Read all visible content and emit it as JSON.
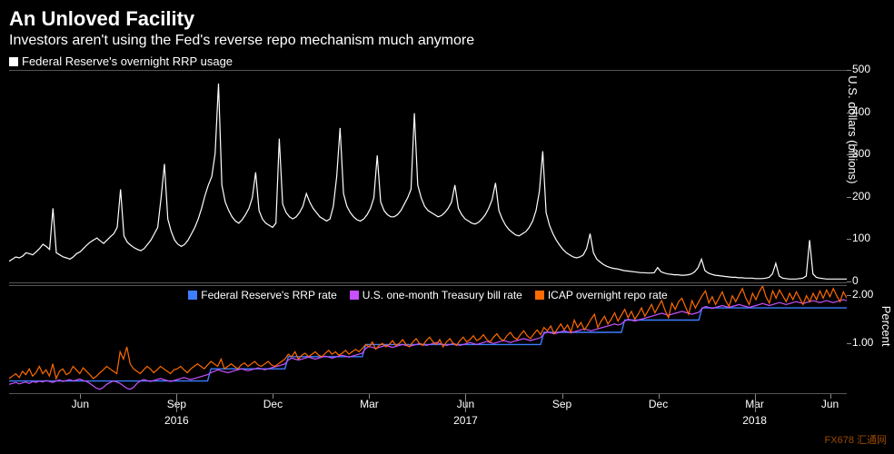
{
  "title": "An Unloved Facility",
  "subtitle": "Investors aren't using the Fed's reverse repo mechanism much anymore",
  "top_chart": {
    "type": "line",
    "legend_label": "Federal Reserve's overnight RRP usage",
    "legend_color": "#ffffff",
    "ylabel": "U.S. dollars (billions)",
    "ylim": [
      0,
      500
    ],
    "yticks": [
      0,
      100,
      200,
      300,
      400,
      500
    ],
    "line_color": "#ffffff",
    "line_width": 1.2,
    "background_color": "#000000",
    "data": [
      50,
      55,
      60,
      58,
      62,
      70,
      68,
      65,
      72,
      80,
      90,
      85,
      78,
      175,
      70,
      65,
      60,
      58,
      55,
      60,
      68,
      72,
      80,
      88,
      95,
      100,
      105,
      98,
      92,
      100,
      108,
      115,
      130,
      220,
      110,
      95,
      88,
      82,
      78,
      75,
      80,
      90,
      100,
      115,
      130,
      200,
      280,
      150,
      120,
      100,
      90,
      85,
      90,
      100,
      115,
      130,
      150,
      175,
      205,
      230,
      250,
      305,
      470,
      230,
      190,
      170,
      155,
      145,
      140,
      148,
      160,
      175,
      200,
      260,
      170,
      150,
      140,
      135,
      130,
      140,
      340,
      185,
      165,
      155,
      150,
      155,
      165,
      180,
      210,
      190,
      175,
      165,
      155,
      150,
      145,
      150,
      180,
      250,
      365,
      210,
      180,
      165,
      155,
      148,
      145,
      150,
      160,
      175,
      200,
      300,
      190,
      170,
      160,
      155,
      155,
      160,
      170,
      185,
      200,
      220,
      400,
      230,
      200,
      180,
      170,
      165,
      160,
      155,
      158,
      165,
      175,
      190,
      230,
      175,
      160,
      150,
      145,
      140,
      138,
      142,
      150,
      160,
      175,
      195,
      235,
      170,
      150,
      135,
      125,
      118,
      112,
      110,
      115,
      120,
      130,
      145,
      170,
      215,
      310,
      165,
      135,
      115,
      100,
      88,
      78,
      70,
      65,
      60,
      58,
      60,
      65,
      80,
      115,
      70,
      55,
      48,
      42,
      38,
      35,
      33,
      32,
      30,
      28,
      27,
      26,
      25,
      24,
      23,
      23,
      22,
      22,
      23,
      35,
      25,
      22,
      20,
      19,
      18,
      18,
      17,
      17,
      18,
      20,
      25,
      35,
      55,
      28,
      22,
      19,
      17,
      16,
      15,
      14,
      13,
      12,
      12,
      11,
      11,
      10,
      10,
      10,
      9,
      9,
      9,
      10,
      12,
      20,
      45,
      15,
      10,
      9,
      8,
      8,
      8,
      9,
      10,
      15,
      100,
      20,
      12,
      10,
      9,
      8,
      8,
      8,
      8,
      8,
      8,
      8
    ]
  },
  "bottom_chart": {
    "type": "line",
    "ylabel": "Percent",
    "ylim": [
      0,
      2.2
    ],
    "yticks": [
      1.0,
      2.0
    ],
    "ytick_labels": [
      "1.00",
      "2.00"
    ],
    "background_color": "#000000",
    "series": [
      {
        "label": "Federal Reserve's RRP rate",
        "color": "#3d7dff",
        "line_width": 1.4,
        "data": [
          0.25,
          0.25,
          0.25,
          0.25,
          0.25,
          0.25,
          0.25,
          0.25,
          0.25,
          0.25,
          0.25,
          0.25,
          0.25,
          0.25,
          0.25,
          0.25,
          0.25,
          0.25,
          0.25,
          0.25,
          0.25,
          0.25,
          0.25,
          0.25,
          0.25,
          0.25,
          0.25,
          0.25,
          0.25,
          0.25,
          0.25,
          0.25,
          0.25,
          0.25,
          0.25,
          0.25,
          0.25,
          0.25,
          0.25,
          0.25,
          0.25,
          0.25,
          0.25,
          0.25,
          0.25,
          0.25,
          0.25,
          0.25,
          0.25,
          0.25,
          0.25,
          0.25,
          0.25,
          0.25,
          0.25,
          0.25,
          0.25,
          0.25,
          0.25,
          0.25,
          0.5,
          0.5,
          0.5,
          0.5,
          0.5,
          0.5,
          0.5,
          0.5,
          0.5,
          0.5,
          0.5,
          0.5,
          0.5,
          0.5,
          0.5,
          0.5,
          0.5,
          0.5,
          0.5,
          0.5,
          0.5,
          0.5,
          0.5,
          0.75,
          0.75,
          0.75,
          0.75,
          0.75,
          0.75,
          0.75,
          0.75,
          0.75,
          0.75,
          0.75,
          0.75,
          0.75,
          0.75,
          0.75,
          0.75,
          0.75,
          0.75,
          0.75,
          0.75,
          0.75,
          0.75,
          0.75,
          1.0,
          1.0,
          1.0,
          1.0,
          1.0,
          1.0,
          1.0,
          1.0,
          1.0,
          1.0,
          1.0,
          1.0,
          1.0,
          1.0,
          1.0,
          1.0,
          1.0,
          1.0,
          1.0,
          1.0,
          1.0,
          1.0,
          1.0,
          1.0,
          1.0,
          1.0,
          1.0,
          1.0,
          1.0,
          1.0,
          1.0,
          1.0,
          1.0,
          1.0,
          1.0,
          1.0,
          1.0,
          1.0,
          1.0,
          1.0,
          1.0,
          1.0,
          1.0,
          1.0,
          1.0,
          1.0,
          1.0,
          1.0,
          1.0,
          1.0,
          1.0,
          1.0,
          1.0,
          1.25,
          1.25,
          1.25,
          1.25,
          1.25,
          1.25,
          1.25,
          1.25,
          1.25,
          1.25,
          1.25,
          1.25,
          1.25,
          1.25,
          1.25,
          1.25,
          1.25,
          1.25,
          1.25,
          1.25,
          1.25,
          1.25,
          1.25,
          1.25,
          1.5,
          1.5,
          1.5,
          1.5,
          1.5,
          1.5,
          1.5,
          1.5,
          1.5,
          1.5,
          1.5,
          1.5,
          1.5,
          1.5,
          1.5,
          1.5,
          1.5,
          1.5,
          1.5,
          1.5,
          1.5,
          1.5,
          1.5,
          1.75,
          1.75,
          1.75,
          1.75,
          1.75,
          1.75,
          1.75,
          1.75,
          1.75,
          1.75,
          1.75,
          1.75,
          1.75,
          1.75,
          1.75,
          1.75,
          1.75,
          1.75,
          1.75,
          1.75,
          1.75,
          1.75,
          1.75,
          1.75,
          1.75,
          1.75,
          1.75,
          1.75,
          1.75,
          1.75,
          1.75,
          1.75,
          1.75,
          1.75,
          1.75,
          1.75,
          1.75,
          1.75,
          1.75,
          1.75,
          1.75,
          1.75,
          1.75,
          1.75
        ]
      },
      {
        "label": "U.S. one-month Treasury bill rate",
        "color": "#c850ff",
        "line_width": 1.2,
        "data": [
          0.18,
          0.2,
          0.22,
          0.19,
          0.21,
          0.23,
          0.2,
          0.24,
          0.22,
          0.25,
          0.23,
          0.26,
          0.24,
          0.22,
          0.25,
          0.27,
          0.24,
          0.26,
          0.28,
          0.25,
          0.27,
          0.29,
          0.26,
          0.24,
          0.2,
          0.15,
          0.1,
          0.08,
          0.12,
          0.18,
          0.22,
          0.25,
          0.23,
          0.2,
          0.15,
          0.1,
          0.08,
          0.12,
          0.2,
          0.25,
          0.28,
          0.26,
          0.24,
          0.26,
          0.28,
          0.3,
          0.28,
          0.26,
          0.24,
          0.26,
          0.28,
          0.3,
          0.32,
          0.3,
          0.28,
          0.3,
          0.32,
          0.34,
          0.36,
          0.38,
          0.42,
          0.45,
          0.48,
          0.46,
          0.44,
          0.42,
          0.44,
          0.46,
          0.48,
          0.5,
          0.48,
          0.46,
          0.48,
          0.5,
          0.52,
          0.5,
          0.48,
          0.5,
          0.52,
          0.54,
          0.56,
          0.58,
          0.6,
          0.68,
          0.72,
          0.7,
          0.68,
          0.7,
          0.72,
          0.74,
          0.72,
          0.7,
          0.72,
          0.74,
          0.76,
          0.74,
          0.72,
          0.74,
          0.76,
          0.78,
          0.76,
          0.74,
          0.76,
          0.78,
          0.8,
          0.82,
          0.92,
          0.96,
          0.94,
          0.92,
          0.94,
          0.96,
          0.98,
          0.96,
          0.94,
          0.96,
          0.98,
          1.0,
          0.98,
          0.96,
          0.98,
          1.0,
          1.02,
          1.0,
          0.98,
          1.0,
          1.02,
          1.04,
          1.02,
          1.0,
          0.98,
          1.0,
          1.02,
          1.0,
          0.98,
          1.0,
          1.02,
          1.04,
          1.02,
          1.0,
          1.02,
          1.04,
          1.06,
          1.04,
          1.02,
          1.04,
          1.06,
          1.08,
          1.06,
          1.04,
          1.06,
          1.08,
          1.1,
          1.12,
          1.1,
          1.08,
          1.1,
          1.12,
          1.14,
          1.22,
          1.26,
          1.24,
          1.22,
          1.24,
          1.26,
          1.28,
          1.26,
          1.24,
          1.26,
          1.28,
          1.3,
          1.32,
          1.3,
          1.28,
          1.3,
          1.32,
          1.34,
          1.36,
          1.38,
          1.4,
          1.42,
          1.4,
          1.42,
          1.48,
          1.52,
          1.5,
          1.48,
          1.5,
          1.52,
          1.54,
          1.56,
          1.58,
          1.6,
          1.62,
          1.64,
          1.62,
          1.6,
          1.62,
          1.64,
          1.66,
          1.68,
          1.66,
          1.64,
          1.62,
          1.64,
          1.66,
          1.74,
          1.78,
          1.76,
          1.74,
          1.76,
          1.78,
          1.8,
          1.78,
          1.76,
          1.78,
          1.8,
          1.82,
          1.8,
          1.78,
          1.76,
          1.78,
          1.8,
          1.82,
          1.84,
          1.82,
          1.8,
          1.82,
          1.84,
          1.86,
          1.84,
          1.82,
          1.84,
          1.86,
          1.88,
          1.86,
          1.84,
          1.86,
          1.88,
          1.9,
          1.88,
          1.86,
          1.88,
          1.9,
          1.88,
          1.86,
          1.88,
          1.9,
          1.92,
          1.9
        ]
      },
      {
        "label": "ICAP overnight repo rate",
        "color": "#ff6a00",
        "line_width": 1.2,
        "data": [
          0.3,
          0.35,
          0.4,
          0.32,
          0.45,
          0.38,
          0.5,
          0.35,
          0.42,
          0.55,
          0.4,
          0.48,
          0.35,
          0.6,
          0.3,
          0.45,
          0.5,
          0.38,
          0.42,
          0.55,
          0.48,
          0.4,
          0.52,
          0.45,
          0.38,
          0.3,
          0.35,
          0.42,
          0.48,
          0.55,
          0.5,
          0.45,
          0.4,
          0.85,
          0.7,
          0.95,
          0.6,
          0.5,
          0.45,
          0.4,
          0.48,
          0.55,
          0.5,
          0.42,
          0.48,
          0.55,
          0.5,
          0.45,
          0.4,
          0.48,
          0.5,
          0.55,
          0.48,
          0.42,
          0.5,
          0.55,
          0.6,
          0.55,
          0.5,
          0.58,
          0.65,
          0.6,
          0.55,
          0.7,
          0.5,
          0.55,
          0.6,
          0.55,
          0.5,
          0.58,
          0.62,
          0.55,
          0.6,
          0.65,
          0.58,
          0.55,
          0.6,
          0.65,
          0.58,
          0.55,
          0.6,
          0.65,
          0.7,
          0.8,
          0.75,
          0.85,
          0.7,
          0.78,
          0.82,
          0.75,
          0.8,
          0.85,
          0.78,
          0.75,
          0.82,
          0.88,
          0.8,
          0.85,
          0.78,
          0.82,
          0.88,
          0.8,
          0.85,
          0.9,
          0.85,
          0.92,
          1.0,
          0.95,
          1.05,
          0.9,
          0.98,
          1.02,
          0.95,
          1.0,
          1.08,
          0.98,
          1.02,
          1.1,
          1.0,
          0.95,
          1.05,
          1.12,
          1.02,
          0.98,
          1.08,
          1.15,
          1.05,
          1.0,
          1.1,
          0.95,
          1.05,
          1.12,
          1.02,
          0.98,
          1.08,
          1.15,
          1.05,
          1.1,
          1.18,
          1.08,
          1.12,
          1.2,
          1.1,
          1.05,
          1.15,
          1.22,
          1.12,
          1.08,
          1.18,
          1.25,
          1.15,
          1.1,
          1.2,
          1.28,
          1.18,
          1.12,
          1.22,
          1.3,
          1.2,
          1.35,
          1.28,
          1.38,
          1.22,
          1.32,
          1.42,
          1.3,
          1.4,
          1.25,
          1.5,
          1.35,
          1.45,
          1.3,
          1.4,
          1.52,
          1.62,
          1.35,
          1.48,
          1.58,
          1.42,
          1.52,
          1.65,
          1.48,
          1.6,
          1.72,
          1.55,
          1.68,
          1.52,
          1.62,
          1.75,
          1.58,
          1.7,
          1.82,
          1.65,
          1.78,
          1.9,
          1.7,
          1.55,
          1.85,
          1.72,
          1.88,
          1.95,
          1.78,
          1.62,
          1.9,
          1.75,
          1.88,
          2.0,
          2.1,
          1.85,
          1.98,
          1.82,
          1.95,
          2.08,
          1.9,
          1.78,
          2.0,
          1.88,
          2.02,
          2.15,
          1.95,
          1.82,
          2.05,
          1.92,
          2.08,
          2.2,
          1.98,
          1.85,
          2.1,
          1.95,
          2.12,
          2.0,
          1.88,
          2.05,
          1.92,
          2.08,
          1.95,
          1.82,
          2.0,
          1.88,
          2.05,
          1.92,
          2.1,
          1.95,
          2.12,
          1.98,
          2.15,
          2.0,
          1.88,
          2.08,
          1.95
        ]
      }
    ]
  },
  "x_axis": {
    "tick_labels": [
      "Jun",
      "Sep",
      "Dec",
      "Mar",
      "Jun",
      "Sep",
      "Dec",
      "Mar",
      "Jun"
    ],
    "tick_positions_pct": [
      8.5,
      20,
      31.5,
      43,
      54.5,
      66,
      77.5,
      89,
      98
    ],
    "year_labels": [
      "2016",
      "2017",
      "2018"
    ],
    "year_positions_pct": [
      20,
      54.5,
      89
    ]
  },
  "watermark": "FX678 汇通网"
}
